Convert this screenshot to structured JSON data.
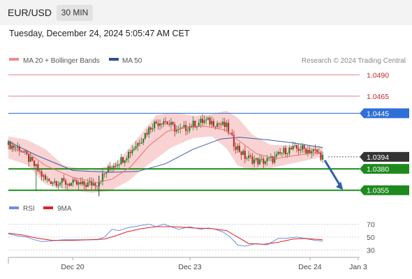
{
  "header": {
    "pair": "EUR/USD",
    "timeframe": "30 MIN"
  },
  "datetime": "Tuesday, December 24, 2024 5:05:47 AM CET",
  "credit": "Research © 2024 Trading Central",
  "legend": {
    "ma20": "MA 20 + Bollinger Bands",
    "ma50": "MA 50",
    "rsi": "RSI",
    "rsi_ma": "9MA"
  },
  "colors": {
    "up": "#2e7d32",
    "down": "#c62828",
    "bollinger": "#f7c4c4",
    "ma20": "#ef6f6f",
    "ma50": "#3a5ea8",
    "resistance": "#e08080",
    "blue_level": "#3b78d8",
    "support": "#1e8f1e",
    "rsi": "#6f8fe0",
    "rsi_ma": "#e02020",
    "arrow": "#2f5fa8"
  },
  "chart_data": [
    {
      "type": "candlestick",
      "title": "",
      "series": [
        {
          "name": "MA 20 + Bollinger Bands"
        },
        {
          "name": "MA 50"
        }
      ],
      "x_ticks": [
        "Dec 20",
        "Dec 23",
        "Dec 24",
        "Jan 3"
      ],
      "levels": [
        {
          "value": 1.049,
          "label": "1.0490",
          "kind": "resistance"
        },
        {
          "value": 1.0465,
          "label": "1.0465",
          "kind": "resistance"
        },
        {
          "value": 1.0445,
          "label": "1.0445",
          "kind": "key"
        },
        {
          "value": 1.0394,
          "label": "1.0394",
          "kind": "last"
        },
        {
          "value": 1.038,
          "label": "1.0380",
          "kind": "support"
        },
        {
          "value": 1.0355,
          "label": "1.0355",
          "kind": "support"
        }
      ],
      "last_price": 1.0394,
      "ohlc_anchors": [
        [
          0,
          1.0408
        ],
        [
          6,
          1.0404
        ],
        [
          14,
          1.0384
        ],
        [
          20,
          1.0367
        ],
        [
          30,
          1.0364
        ],
        [
          40,
          1.0361
        ],
        [
          48,
          1.0364
        ],
        [
          56,
          1.0384
        ],
        [
          62,
          1.0392
        ],
        [
          70,
          1.041
        ],
        [
          78,
          1.0432
        ],
        [
          84,
          1.0437
        ],
        [
          92,
          1.0424
        ],
        [
          100,
          1.0432
        ],
        [
          106,
          1.0436
        ],
        [
          114,
          1.0433
        ],
        [
          118,
          1.0429
        ],
        [
          122,
          1.041
        ],
        [
          128,
          1.0394
        ],
        [
          136,
          1.0388
        ],
        [
          144,
          1.0392
        ],
        [
          150,
          1.0402
        ],
        [
          158,
          1.0404
        ],
        [
          166,
          1.04
        ],
        [
          170,
          1.0394
        ]
      ],
      "ma20": [
        [
          0,
          1.0404
        ],
        [
          10,
          1.04
        ],
        [
          20,
          1.0384
        ],
        [
          35,
          1.037
        ],
        [
          48,
          1.0364
        ],
        [
          56,
          1.0368
        ],
        [
          66,
          1.0382
        ],
        [
          76,
          1.0407
        ],
        [
          86,
          1.0424
        ],
        [
          96,
          1.0428
        ],
        [
          106,
          1.043
        ],
        [
          118,
          1.0425
        ],
        [
          124,
          1.0414
        ],
        [
          134,
          1.0398
        ],
        [
          144,
          1.0392
        ],
        [
          156,
          1.0396
        ],
        [
          170,
          1.04
        ]
      ],
      "ma50": [
        [
          0,
          1.0412
        ],
        [
          15,
          1.0396
        ],
        [
          35,
          1.0378
        ],
        [
          55,
          1.0376
        ],
        [
          70,
          1.0377
        ],
        [
          85,
          1.0386
        ],
        [
          100,
          1.0403
        ],
        [
          115,
          1.0415
        ],
        [
          125,
          1.0417
        ],
        [
          140,
          1.0414
        ],
        [
          155,
          1.041
        ],
        [
          170,
          1.0405
        ]
      ],
      "bollinger_upper": [
        [
          0,
          1.0418
        ],
        [
          10,
          1.0414
        ],
        [
          20,
          1.0403
        ],
        [
          30,
          1.0384
        ],
        [
          45,
          1.0378
        ],
        [
          58,
          1.0386
        ],
        [
          70,
          1.0416
        ],
        [
          80,
          1.0443
        ],
        [
          90,
          1.0446
        ],
        [
          100,
          1.0442
        ],
        [
          110,
          1.0444
        ],
        [
          118,
          1.0448
        ],
        [
          124,
          1.044
        ],
        [
          132,
          1.042
        ],
        [
          142,
          1.0408
        ],
        [
          155,
          1.0407
        ],
        [
          170,
          1.0406
        ]
      ],
      "bollinger_lower": [
        [
          0,
          1.0392
        ],
        [
          10,
          1.0385
        ],
        [
          20,
          1.0362
        ],
        [
          30,
          1.0356
        ],
        [
          45,
          1.0352
        ],
        [
          55,
          1.0354
        ],
        [
          65,
          1.0366
        ],
        [
          75,
          1.0384
        ],
        [
          88,
          1.0405
        ],
        [
          100,
          1.0416
        ],
        [
          110,
          1.0418
        ],
        [
          118,
          1.0404
        ],
        [
          124,
          1.0384
        ],
        [
          132,
          1.0378
        ],
        [
          142,
          1.0381
        ],
        [
          155,
          1.0387
        ],
        [
          170,
          1.0394
        ]
      ],
      "x_domain": [
        0,
        190
      ],
      "y_domain": [
        1.0345,
        1.05
      ]
    },
    {
      "type": "line",
      "title": "",
      "series": [
        {
          "name": "RSI"
        },
        {
          "name": "9MA"
        }
      ],
      "y_ticks": [
        70,
        50,
        30
      ],
      "rsi": [
        [
          0,
          55
        ],
        [
          5,
          52
        ],
        [
          10,
          50
        ],
        [
          14,
          46
        ],
        [
          18,
          43
        ],
        [
          22,
          44
        ],
        [
          30,
          46
        ],
        [
          40,
          46
        ],
        [
          48,
          46
        ],
        [
          52,
          50
        ],
        [
          56,
          62
        ],
        [
          60,
          60
        ],
        [
          64,
          64
        ],
        [
          70,
          67
        ],
        [
          76,
          70
        ],
        [
          80,
          66
        ],
        [
          84,
          70
        ],
        [
          88,
          66
        ],
        [
          92,
          62
        ],
        [
          98,
          66
        ],
        [
          104,
          62
        ],
        [
          108,
          64
        ],
        [
          112,
          62
        ],
        [
          116,
          58
        ],
        [
          120,
          50
        ],
        [
          124,
          38
        ],
        [
          128,
          36
        ],
        [
          134,
          40
        ],
        [
          140,
          38
        ],
        [
          146,
          48
        ],
        [
          150,
          48
        ],
        [
          156,
          50
        ],
        [
          160,
          48
        ],
        [
          166,
          45
        ],
        [
          170,
          44
        ]
      ],
      "rsi_ma": [
        [
          0,
          56
        ],
        [
          8,
          53
        ],
        [
          16,
          48
        ],
        [
          24,
          45
        ],
        [
          34,
          45
        ],
        [
          44,
          46
        ],
        [
          52,
          47
        ],
        [
          58,
          52
        ],
        [
          64,
          58
        ],
        [
          72,
          63
        ],
        [
          80,
          66
        ],
        [
          90,
          66
        ],
        [
          100,
          64
        ],
        [
          110,
          63
        ],
        [
          118,
          60
        ],
        [
          124,
          50
        ],
        [
          130,
          40
        ],
        [
          138,
          39
        ],
        [
          146,
          42
        ],
        [
          154,
          47
        ],
        [
          160,
          48
        ],
        [
          170,
          46
        ]
      ],
      "x_domain": [
        0,
        190
      ],
      "y_domain": [
        22,
        80
      ]
    }
  ]
}
